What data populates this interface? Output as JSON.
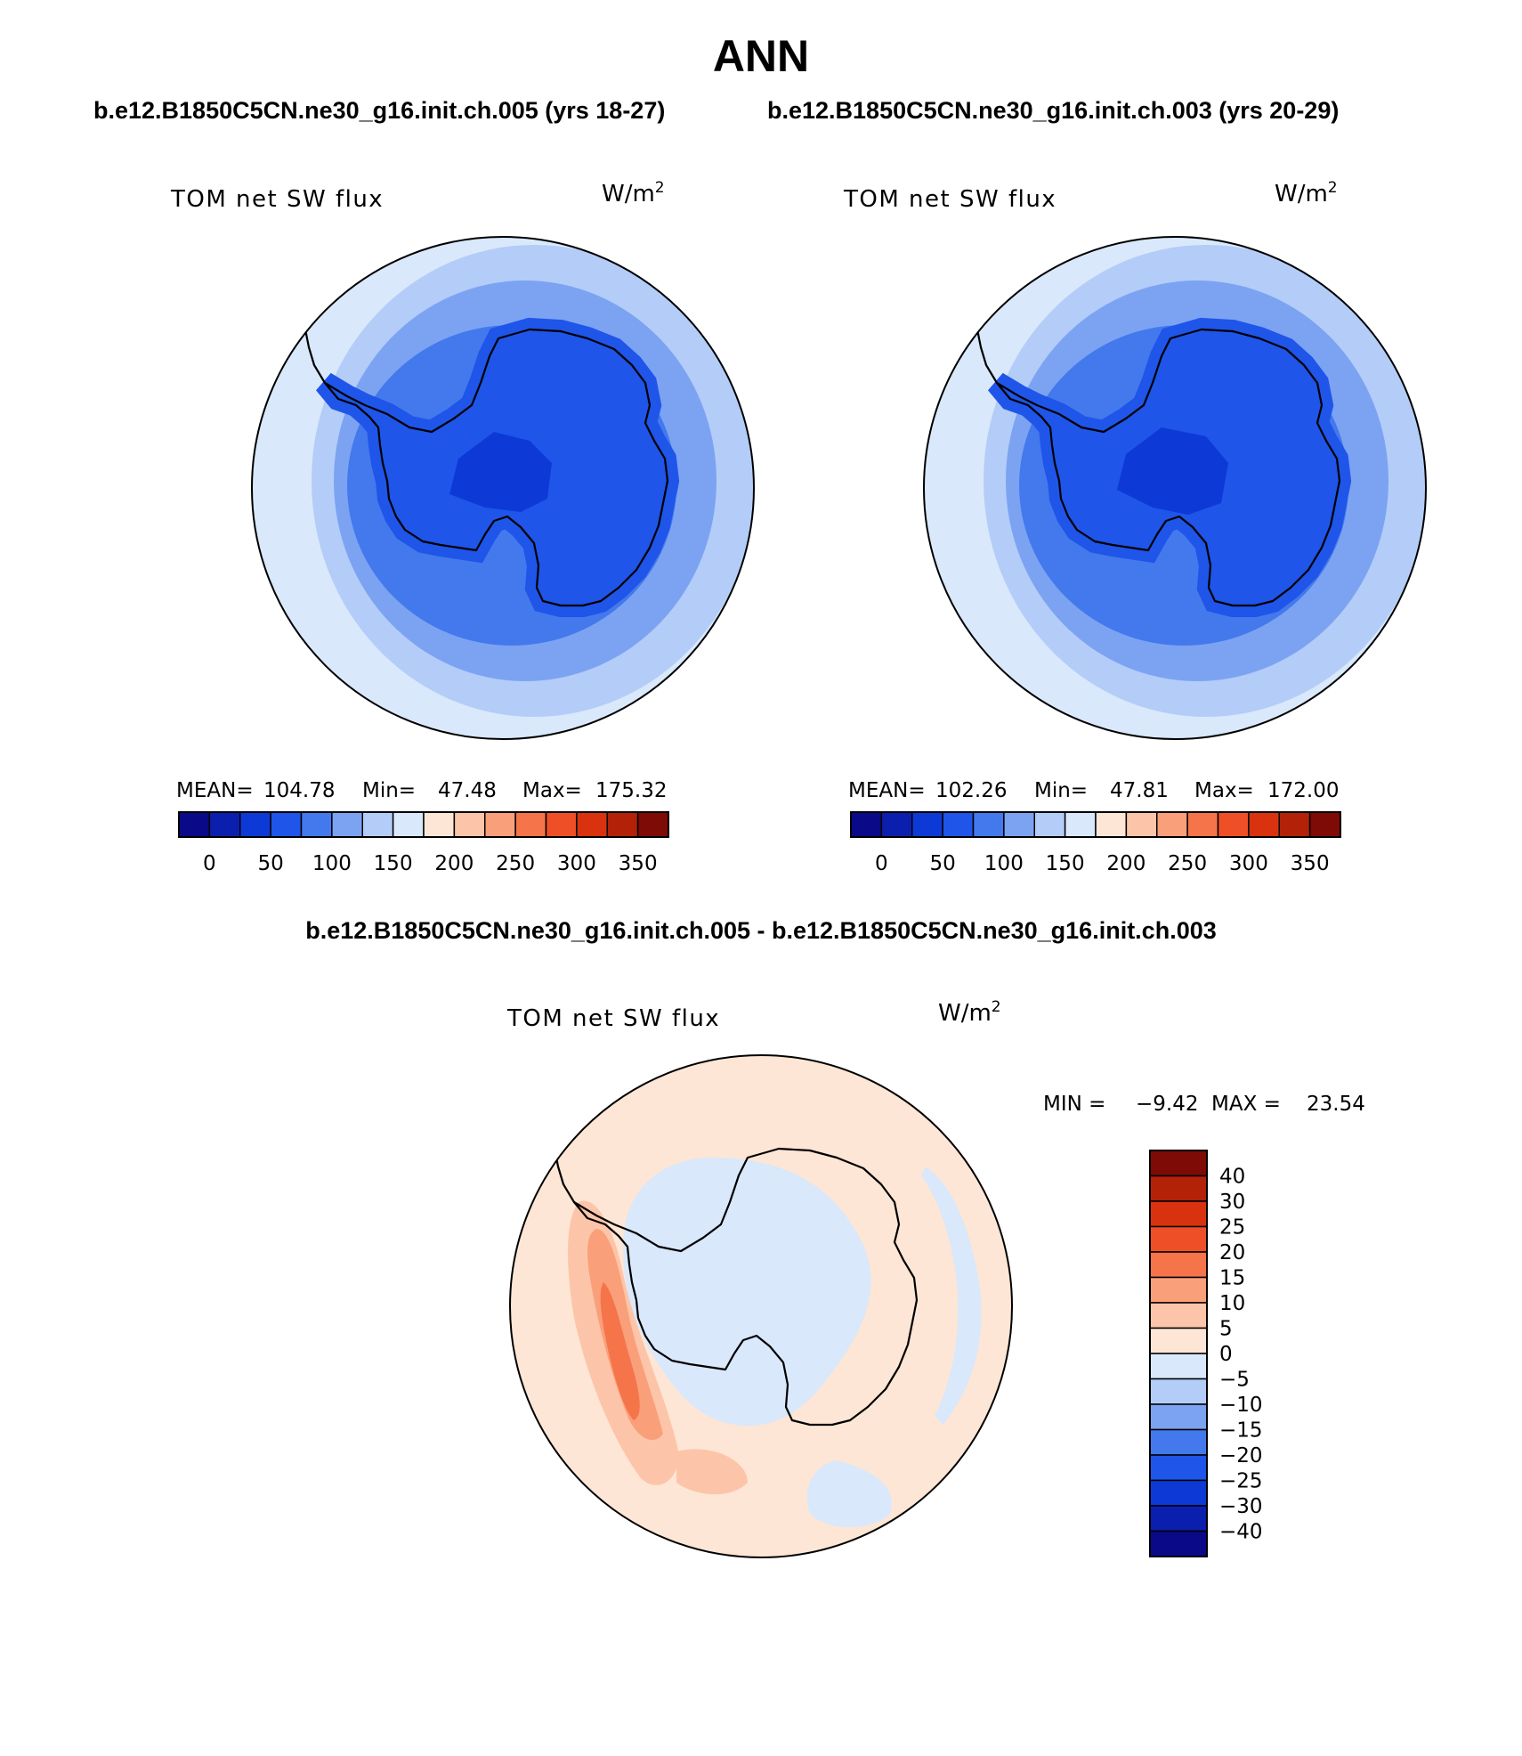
{
  "figure": {
    "main_title": "ANN",
    "panel_titles": [
      "b.e12.B1850C5CN.ne30_g16.init.ch.005 (yrs 18-27)",
      "b.e12.B1850C5CN.ne30_g16.init.ch.003 (yrs 20-29)"
    ],
    "diff_title": "b.e12.B1850C5CN.ne30_g16.init.ch.005 - b.e12.B1850C5CN.ne30_g16.init.ch.003"
  },
  "chart_data": [
    {
      "type": "map",
      "projection": "south-polar-stereographic",
      "left_label": "TOM net SW flux",
      "units_base": "W/m",
      "units_exp": "2",
      "stats": [
        {
          "label": "MEAN=",
          "value": "104.78"
        },
        {
          "label": "Min=",
          "value": "47.48"
        },
        {
          "label": "Max=",
          "value": "175.32"
        }
      ],
      "colorbar_ticks": [
        "0",
        "50",
        "100",
        "150",
        "200",
        "250",
        "300",
        "350"
      ],
      "colorbar_colors": [
        "#0a0a88",
        "#0b1fae",
        "#0d3ad6",
        "#1f55e8",
        "#4379ec",
        "#7ca3f2",
        "#b3cdf8",
        "#d9e8fb",
        "#fde6d5",
        "#fcc5a9",
        "#f9a07b",
        "#f6744a",
        "#ef4f26",
        "#d9320f",
        "#b32108",
        "#7e0b05"
      ],
      "field_bands": [
        {
          "range": "150-175",
          "color": "#d9e8fb"
        },
        {
          "range": "125-150",
          "color": "#b3cdf8"
        },
        {
          "range": "100-125",
          "color": "#7ca3f2"
        },
        {
          "range": "75-100",
          "color": "#4379ec"
        },
        {
          "range": "50-75",
          "color": "#1f55e8"
        },
        {
          "range": "25-50",
          "color": "#0d3ad6"
        }
      ]
    },
    {
      "type": "map",
      "projection": "south-polar-stereographic",
      "left_label": "TOM net SW flux",
      "units_base": "W/m",
      "units_exp": "2",
      "stats": [
        {
          "label": "MEAN=",
          "value": "102.26"
        },
        {
          "label": "Min=",
          "value": "47.81"
        },
        {
          "label": "Max=",
          "value": "172.00"
        }
      ],
      "colorbar_ticks": [
        "0",
        "50",
        "100",
        "150",
        "200",
        "250",
        "300",
        "350"
      ],
      "colorbar_colors": [
        "#0a0a88",
        "#0b1fae",
        "#0d3ad6",
        "#1f55e8",
        "#4379ec",
        "#7ca3f2",
        "#b3cdf8",
        "#d9e8fb",
        "#fde6d5",
        "#fcc5a9",
        "#f9a07b",
        "#f6744a",
        "#ef4f26",
        "#d9320f",
        "#b32108",
        "#7e0b05"
      ],
      "field_bands": [
        {
          "range": "150-175",
          "color": "#d9e8fb"
        },
        {
          "range": "125-150",
          "color": "#b3cdf8"
        },
        {
          "range": "100-125",
          "color": "#7ca3f2"
        },
        {
          "range": "75-100",
          "color": "#4379ec"
        },
        {
          "range": "50-75",
          "color": "#1f55e8"
        },
        {
          "range": "25-50",
          "color": "#0d3ad6"
        }
      ]
    },
    {
      "type": "map",
      "projection": "south-polar-stereographic",
      "left_label": "TOM net SW flux",
      "units_base": "W/m",
      "units_exp": "2",
      "min_label": "MIN =",
      "min_value": "−9.42",
      "max_label": "MAX =",
      "max_value": "23.54",
      "colorbar_ticks": [
        "40",
        "30",
        "25",
        "20",
        "15",
        "10",
        "5",
        "0",
        "−5",
        "−10",
        "−15",
        "−20",
        "−25",
        "−30",
        "−40"
      ],
      "colorbar_colors": [
        "#7e0b05",
        "#b32108",
        "#d9320f",
        "#ef4f26",
        "#f6744a",
        "#f9a07b",
        "#fcc5a9",
        "#fde6d5",
        "#d9e8fb",
        "#b3cdf8",
        "#7ca3f2",
        "#4379ec",
        "#1f55e8",
        "#0d3ad6",
        "#0b1fae",
        "#0a0a88"
      ]
    }
  ]
}
